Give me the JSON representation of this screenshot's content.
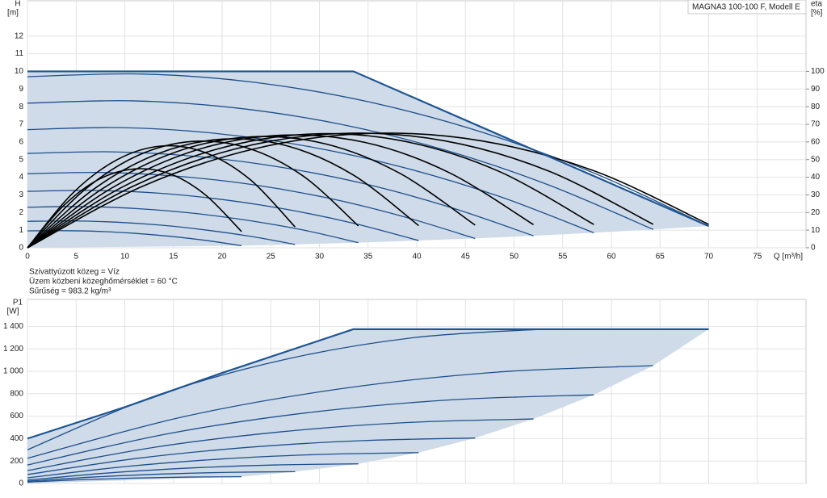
{
  "chart_data": [
    {
      "type": "line",
      "title": "MAGNA3 100-100 F, Modell E",
      "ylabel": "H",
      "yunit": "[m]",
      "y2label": "eta",
      "y2unit": "[%]",
      "xlabel": "Q [m³/h]",
      "annotations": [
        "Szivattyúzott közeg = Víz",
        "Üzem közbeni közeghőmérséklet = 60 °C",
        "Sűrűség = 983.2 kg/m³"
      ],
      "xlim": [
        0,
        80
      ],
      "xticks": [
        0,
        5,
        10,
        15,
        20,
        25,
        30,
        35,
        40,
        45,
        50,
        55,
        60,
        65,
        70,
        75
      ],
      "ylim": [
        0,
        14
      ],
      "yticks": [
        0,
        1,
        2,
        3,
        4,
        5,
        6,
        7,
        8,
        9,
        10,
        11,
        12
      ],
      "y2lim": [
        0,
        140
      ],
      "y2ticks": [
        0,
        10,
        20,
        30,
        40,
        50,
        60,
        70,
        80,
        90,
        100
      ],
      "grid": true,
      "area": {
        "color": "#cfdbe8",
        "x": [
          0,
          33.5,
          70,
          64.3,
          58.2,
          52,
          46,
          40.2,
          34,
          27.5,
          22,
          0
        ],
        "values": [
          10,
          10,
          1.23,
          1.04,
          0.85,
          0.68,
          0.53,
          0.41,
          0.29,
          0.19,
          0.12,
          0
        ]
      },
      "envelope": {
        "color": "#1d5592",
        "x": [
          0,
          33.5,
          70
        ],
        "values": [
          10,
          10,
          1.23
        ]
      },
      "series": [
        {
          "color": "#1d4f8c",
          "x": [
            0,
            11.67,
            23.33,
            35,
            46.67,
            58.33,
            70
          ],
          "values": [
            9.7,
            9.85,
            9.38,
            8.28,
            6.56,
            4.21,
            1.23
          ]
        },
        {
          "color": "#1d4f8c",
          "x": [
            0,
            10.7,
            21.4,
            32.2,
            42.9,
            53.6,
            64.3
          ],
          "values": [
            8.2,
            8.33,
            7.93,
            7.0,
            5.54,
            3.55,
            1.04
          ]
        },
        {
          "color": "#1d4f8c",
          "x": [
            0,
            9.7,
            19.4,
            29.1,
            38.8,
            48.5,
            58.2
          ],
          "values": [
            6.7,
            6.81,
            6.48,
            5.72,
            4.53,
            2.91,
            0.85
          ]
        },
        {
          "color": "#1d4f8c",
          "x": [
            0,
            8.7,
            17.3,
            26,
            34.7,
            43.3,
            52
          ],
          "values": [
            5.35,
            5.44,
            5.18,
            4.57,
            3.62,
            2.32,
            0.68
          ]
        },
        {
          "color": "#1d4f8c",
          "x": [
            0,
            7.7,
            15.3,
            23,
            30.7,
            38.3,
            46
          ],
          "values": [
            4.2,
            4.27,
            4.06,
            3.59,
            2.84,
            1.82,
            0.53
          ]
        },
        {
          "color": "#1d4f8c",
          "x": [
            0,
            6.7,
            13.4,
            20.1,
            26.8,
            33.5,
            40.2
          ],
          "values": [
            3.2,
            3.25,
            3.1,
            2.73,
            2.16,
            1.39,
            0.41
          ]
        },
        {
          "color": "#1d4f8c",
          "x": [
            0,
            5.7,
            11.3,
            17,
            22.7,
            28.4,
            34
          ],
          "values": [
            2.3,
            2.34,
            2.22,
            1.96,
            1.55,
            1.0,
            0.29
          ]
        },
        {
          "color": "#1d4f8c",
          "x": [
            0,
            4.6,
            9.2,
            13.8,
            18.3,
            22.9,
            27.5
          ],
          "values": [
            1.5,
            1.52,
            1.45,
            1.28,
            1.01,
            0.65,
            0.19
          ]
        },
        {
          "color": "#1d4f8c",
          "x": [
            0,
            3.7,
            7.3,
            11,
            14.7,
            18.3,
            22
          ],
          "values": [
            0.96,
            0.97,
            0.93,
            0.82,
            0.65,
            0.42,
            0.12
          ]
        },
        {
          "color": "#000000",
          "axis": "y2",
          "x": [
            0,
            11.67,
            23.33,
            35,
            46.67,
            58.33,
            70
          ],
          "values": [
            0,
            34.5,
            56.1,
            64.8,
            60.6,
            43.4,
            13.3
          ]
        },
        {
          "color": "#000000",
          "axis": "y2",
          "x": [
            0,
            10.7,
            21.4,
            32.2,
            42.9,
            53.6,
            64.3
          ],
          "values": [
            0,
            34.5,
            56.1,
            64.8,
            60.6,
            43.4,
            13.3
          ]
        },
        {
          "color": "#000000",
          "axis": "y2",
          "x": [
            0,
            9.7,
            19.4,
            29.1,
            38.8,
            48.5,
            58.2
          ],
          "values": [
            0,
            34.3,
            55.8,
            64.5,
            60.3,
            43.2,
            13.2
          ]
        },
        {
          "color": "#000000",
          "axis": "y2",
          "x": [
            0,
            8.7,
            17.3,
            26,
            34.7,
            43.3,
            52
          ],
          "values": [
            0,
            34.0,
            55.3,
            63.8,
            59.7,
            42.7,
            13.1
          ]
        },
        {
          "color": "#000000",
          "axis": "y2",
          "x": [
            0,
            7.7,
            15.3,
            23,
            30.7,
            38.3,
            46
          ],
          "values": [
            0,
            33.5,
            54.4,
            62.9,
            58.8,
            42.1,
            12.9
          ]
        },
        {
          "color": "#000000",
          "axis": "y2",
          "x": [
            0,
            6.7,
            13.4,
            20.1,
            26.8,
            33.5,
            40.2
          ],
          "values": [
            0,
            32.8,
            53.3,
            61.6,
            57.6,
            41.2,
            12.6
          ]
        },
        {
          "color": "#000000",
          "axis": "y2",
          "x": [
            0,
            5.7,
            11.3,
            17,
            22.7,
            28.4,
            34
          ],
          "values": [
            0,
            32.1,
            52.2,
            60.3,
            56.4,
            40.4,
            12.4
          ]
        },
        {
          "color": "#000000",
          "axis": "y2",
          "x": [
            0,
            4.6,
            9.2,
            13.8,
            18.3,
            22.9,
            27.5
          ],
          "values": [
            0,
            30.7,
            49.9,
            57.7,
            53.9,
            38.6,
            11.8
          ]
        },
        {
          "color": "#000000",
          "axis": "y2",
          "x": [
            0,
            3.7,
            7.3,
            11,
            14.7,
            18.3,
            22
          ],
          "values": [
            0,
            23.8,
            38.7,
            44.7,
            41.8,
            29.9,
            9.2
          ]
        }
      ]
    },
    {
      "type": "line",
      "ylabel": "P1",
      "yunit": "[W]",
      "xlim": [
        0,
        80
      ],
      "xgrid": [
        0,
        5,
        10,
        15,
        20,
        25,
        30,
        35,
        40,
        45,
        50,
        55,
        60,
        65,
        70,
        75
      ],
      "ylim": [
        0,
        1640
      ],
      "yticks": [
        0,
        200,
        400,
        600,
        800,
        {
          "value": 1000,
          "label": "1 000"
        },
        {
          "value": 1200,
          "label": "1 200"
        },
        {
          "value": 1400,
          "label": "1 400"
        }
      ],
      "grid": true,
      "area": {
        "color": "#cfdbe8",
        "x": [
          0,
          10,
          20,
          33.5,
          70,
          64.3,
          58.2,
          52,
          46,
          40.2,
          34,
          27.5,
          22,
          0
        ],
        "values": [
          400,
          680,
          985,
          1375,
          1375,
          1050,
          790,
          575,
          405,
          275,
          175,
          105,
          60,
          0
        ]
      },
      "envelope": {
        "color": "#1d5592",
        "x": [
          0,
          10,
          20,
          33.5,
          70
        ],
        "values": [
          400,
          680,
          985,
          1375,
          1375
        ]
      },
      "series": [
        {
          "color": "#1d4f8c",
          "x": [
            0,
            13.25,
            26.5,
            39.75,
            53
          ],
          "values": [
            300,
            784,
            1106,
            1300,
            1375
          ]
        },
        {
          "color": "#1d4f8c",
          "x": [
            0,
            16.1,
            32.2,
            48.2,
            64.3
          ],
          "values": [
            225,
            596,
            844,
            992,
            1050
          ]
        },
        {
          "color": "#1d4f8c",
          "x": [
            0,
            14.6,
            29.1,
            43.7,
            58.2
          ],
          "values": [
            165,
            446,
            634,
            746,
            790
          ]
        },
        {
          "color": "#1d4f8c",
          "x": [
            0,
            13,
            26,
            39,
            52
          ],
          "values": [
            115,
            322,
            460,
            543,
            575
          ]
        },
        {
          "color": "#1d4f8c",
          "x": [
            0,
            11.5,
            23,
            34.5,
            46
          ],
          "values": [
            80,
            226,
            324,
            382,
            405
          ]
        },
        {
          "color": "#1d4f8c",
          "x": [
            0,
            10.1,
            20.1,
            30.2,
            40.2
          ],
          "values": [
            50,
            151,
            219,
            259,
            275
          ]
        },
        {
          "color": "#1d4f8c",
          "x": [
            0,
            8.5,
            17,
            25.5,
            34
          ],
          "values": [
            30,
            95,
            139,
            165,
            175
          ]
        },
        {
          "color": "#1d4f8c",
          "x": [
            0,
            6.9,
            13.8,
            20.6,
            27.5
          ],
          "values": [
            20,
            58,
            84,
            99,
            105
          ]
        },
        {
          "color": "#1d4f8c",
          "x": [
            0,
            5.5,
            11,
            16.5,
            22
          ],
          "values": [
            12,
            34,
            48,
            57,
            60
          ]
        }
      ]
    }
  ]
}
